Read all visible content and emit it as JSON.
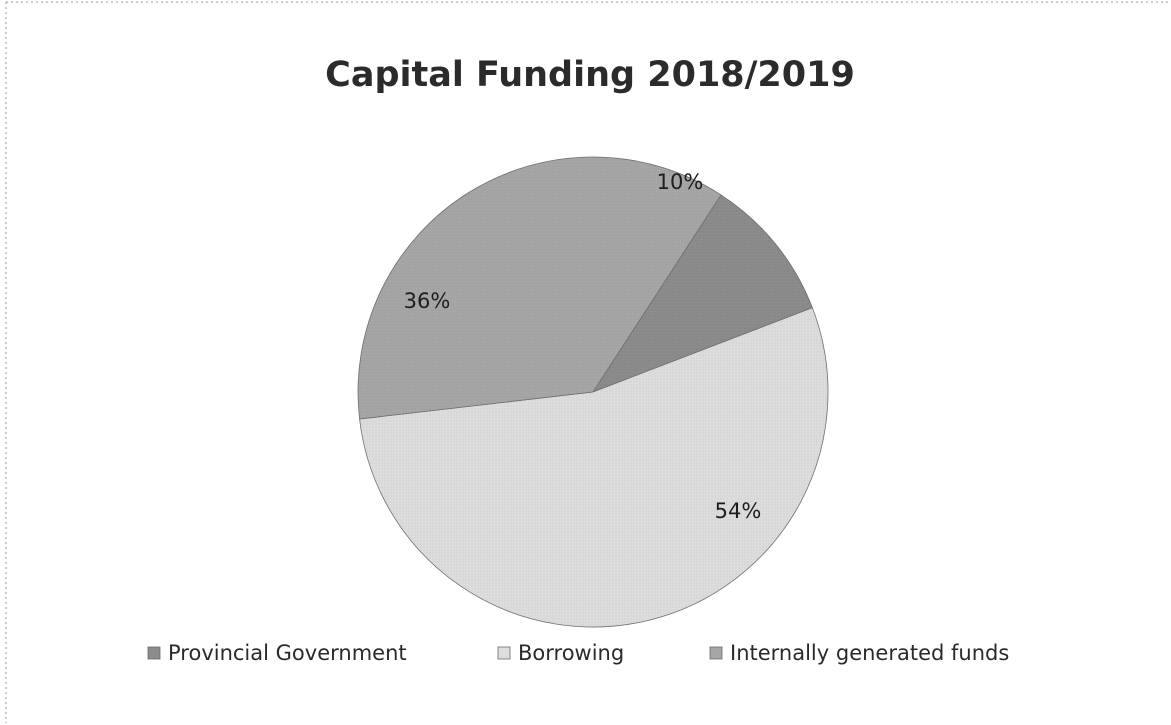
{
  "chart_data": {
    "type": "pie",
    "title": "Capital Funding 2018/2019",
    "legend_position": "bottom",
    "slices": [
      {
        "name": "Provincial Government",
        "value": 10,
        "label": "10%",
        "color": "#8c8c8c"
      },
      {
        "name": "Borrowing",
        "value": 54,
        "label": "54%",
        "color": "#dddddd"
      },
      {
        "name": "Internally generated funds",
        "value": 36,
        "label": "36%",
        "color": "#a6a6a6"
      }
    ]
  }
}
